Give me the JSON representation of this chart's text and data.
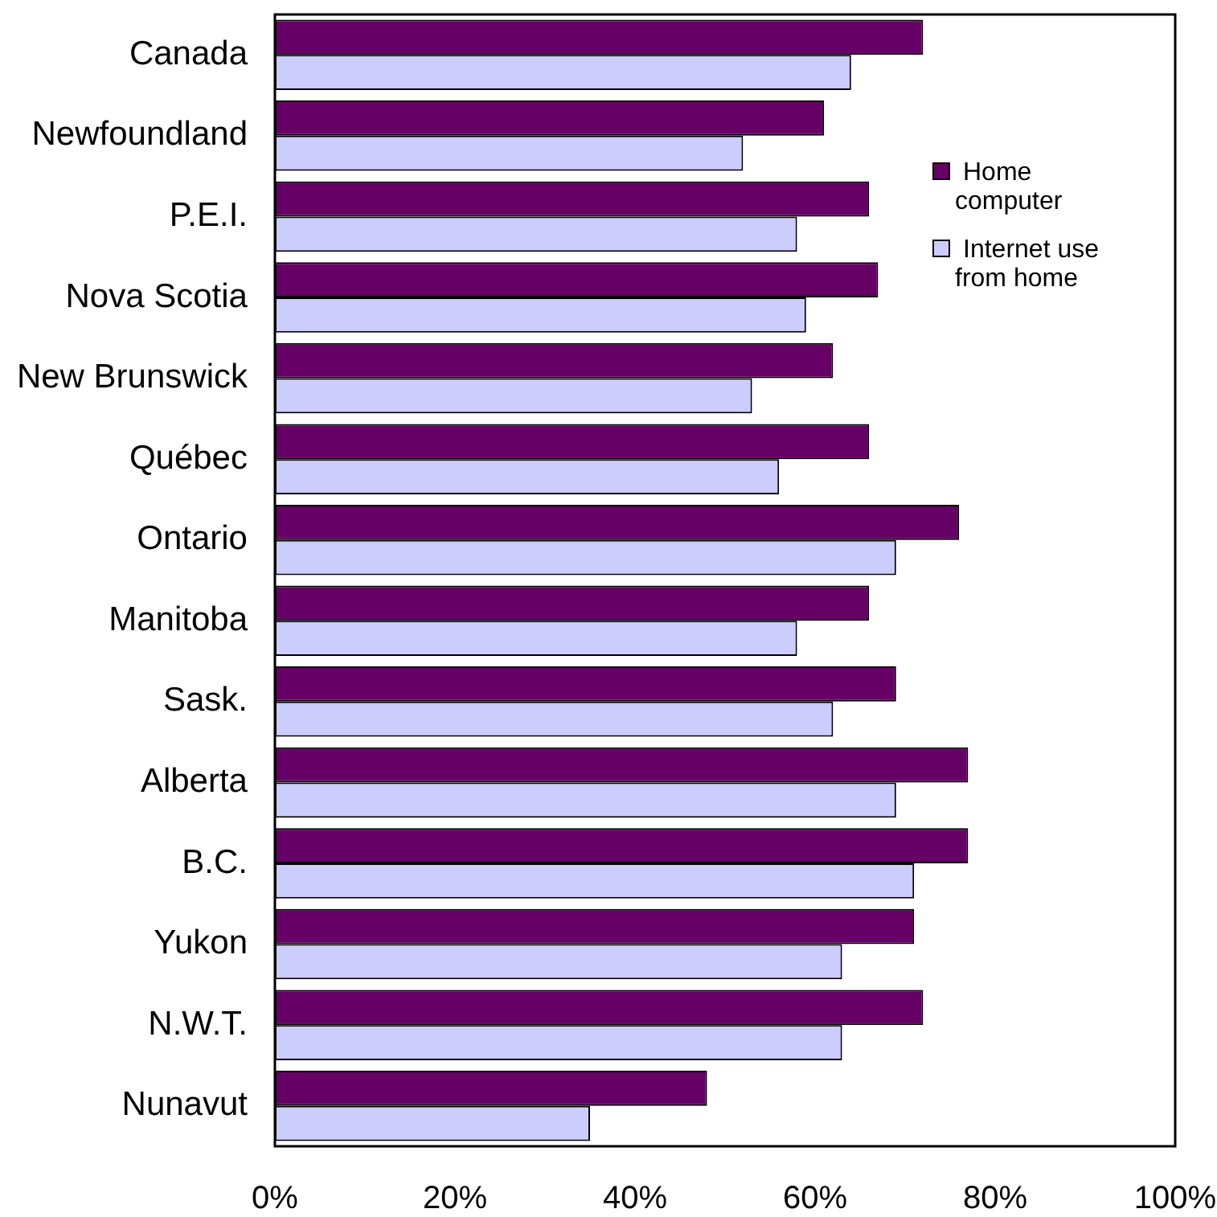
{
  "chart_data": {
    "type": "bar",
    "orientation": "horizontal",
    "categories": [
      "Canada",
      "Newfoundland",
      "P.E.I.",
      "Nova Scotia",
      "New Brunswick",
      "Québec",
      "Ontario",
      "Manitoba",
      "Sask.",
      "Alberta",
      "B.C.",
      "Yukon",
      "N.W.T.",
      "Nunavut"
    ],
    "series": [
      {
        "name": "Home computer",
        "color": "#660066",
        "values": [
          72,
          61,
          66,
          67,
          62,
          66,
          76,
          66,
          69,
          77,
          77,
          71,
          72,
          48
        ]
      },
      {
        "name": "Internet use from home",
        "color": "#ccccff",
        "values": [
          64,
          52,
          58,
          59,
          53,
          56,
          69,
          58,
          62,
          69,
          71,
          63,
          63,
          35
        ]
      }
    ],
    "xlim": [
      0,
      100
    ],
    "xticks": [
      {
        "value": 0,
        "label": "0%"
      },
      {
        "value": 20,
        "label": "20%"
      },
      {
        "value": 40,
        "label": "40%"
      },
      {
        "value": 60,
        "label": "60%"
      },
      {
        "value": 80,
        "label": "80%"
      },
      {
        "value": 100,
        "label": "100%"
      }
    ],
    "grid": false,
    "legend": "top right"
  }
}
